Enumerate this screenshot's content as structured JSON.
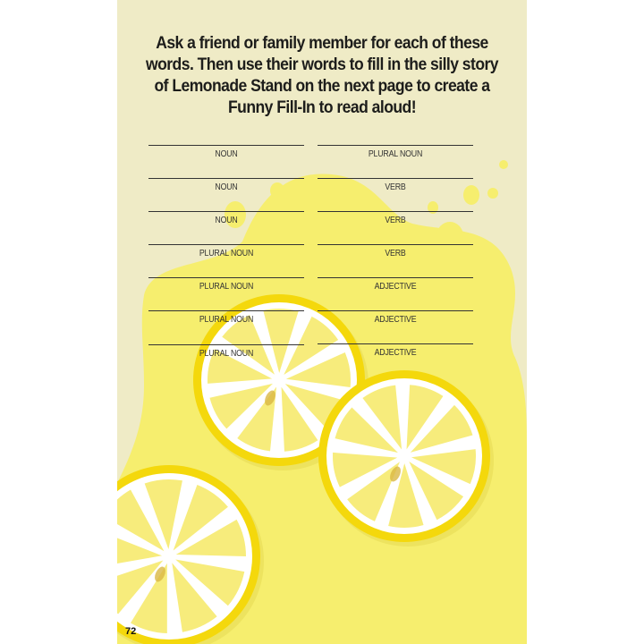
{
  "instructions": "Ask a friend or family member for each of these words. Then use their words to fill in the silly story of Lemonade Stand on the next page to create a Funny Fill-In to read aloud!",
  "left_blanks": [
    "NOUN",
    "NOUN",
    "NOUN",
    "PLURAL NOUN",
    "PLURAL NOUN",
    "PLURAL NOUN",
    "PLURAL NOUN"
  ],
  "right_blanks": [
    "PLURAL NOUN",
    "VERB",
    "VERB",
    "VERB",
    "ADJECTIVE",
    "ADJECTIVE",
    "ADJECTIVE"
  ],
  "page_number": "72",
  "colors": {
    "background": "#efebc6",
    "splash": "#f6ee6e",
    "rim": "#f4d80c",
    "pith": "#ffffff",
    "segment": "#f7ec7c"
  }
}
